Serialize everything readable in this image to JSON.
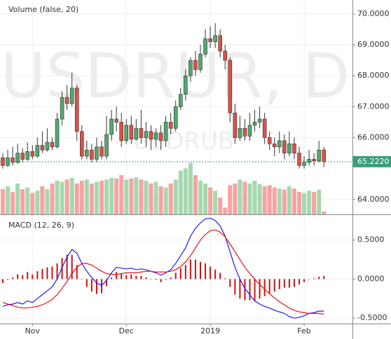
{
  "chart_data": [
    {
      "type": "candlestick",
      "watermark": "USDRUR, D",
      "watermark_sub": "USDRUB",
      "categories": [
        null,
        null,
        null,
        null,
        null,
        null,
        "Nov",
        null,
        null,
        null,
        null,
        null,
        null,
        null,
        null,
        null,
        null,
        null,
        null,
        null,
        null,
        null,
        null,
        null,
        null,
        "Dec",
        null,
        null,
        null,
        null,
        null,
        null,
        null,
        null,
        null,
        null,
        null,
        null,
        null,
        null,
        null,
        null,
        "2019",
        null,
        null,
        null,
        null,
        null,
        null,
        null,
        null,
        null,
        null,
        null,
        null,
        null,
        null,
        null,
        null,
        null,
        null,
        "Feb",
        null,
        null,
        null,
        null
      ],
      "open": [
        65.35,
        65.1,
        65.35,
        65.2,
        65.5,
        65.3,
        65.55,
        65.4,
        65.75,
        65.6,
        65.85,
        65.7,
        66.6,
        67.3,
        67.1,
        67.6,
        66.2,
        65.4,
        65.6,
        65.3,
        65.7,
        65.4,
        66.1,
        66.6,
        66.5,
        65.9,
        66.4,
        65.95,
        66.3,
        66.0,
        66.2,
        65.95,
        66.15,
        65.9,
        66.5,
        66.3,
        67.0,
        67.4,
        68.0,
        68.5,
        68.2,
        68.7,
        69.2,
        69.1,
        69.3,
        68.8,
        68.5,
        66.8,
        66.0,
        66.3,
        66.05,
        66.4,
        66.5,
        66.6,
        66.0,
        65.8,
        65.7,
        65.9,
        65.5,
        65.8,
        65.5,
        65.1,
        65.2,
        65.3,
        65.25,
        65.6
      ],
      "close": [
        65.1,
        65.35,
        65.2,
        65.5,
        65.3,
        65.55,
        65.4,
        65.75,
        65.6,
        65.85,
        65.7,
        66.6,
        67.3,
        67.1,
        67.6,
        66.2,
        65.4,
        65.6,
        65.3,
        65.7,
        65.4,
        66.1,
        66.6,
        66.5,
        65.9,
        66.4,
        65.95,
        66.3,
        66.0,
        66.2,
        65.95,
        66.15,
        65.9,
        66.5,
        66.3,
        67.0,
        67.4,
        68.0,
        68.5,
        68.2,
        68.7,
        69.2,
        69.1,
        69.3,
        68.8,
        68.5,
        66.8,
        66.0,
        66.3,
        66.05,
        66.4,
        66.5,
        66.6,
        66.0,
        65.8,
        65.7,
        65.9,
        65.5,
        65.8,
        65.5,
        65.1,
        65.2,
        65.3,
        65.25,
        65.6,
        65.222
      ],
      "high": [
        65.5,
        65.6,
        65.7,
        65.8,
        65.65,
        65.85,
        65.75,
        66.0,
        66.2,
        66.3,
        66.0,
        66.8,
        67.5,
        67.7,
        68.1,
        67.7,
        66.4,
        65.9,
        65.8,
        66.0,
        65.9,
        66.7,
        66.9,
        67.0,
        66.8,
        66.6,
        66.7,
        66.6,
        66.9,
        66.5,
        66.4,
        66.3,
        66.4,
        66.7,
        66.8,
        67.2,
        67.6,
        68.2,
        68.6,
        68.8,
        69.0,
        69.5,
        69.6,
        69.7,
        69.5,
        69.0,
        68.6,
        67.1,
        66.7,
        66.6,
        66.8,
        66.9,
        67.0,
        66.8,
        66.2,
        66.0,
        66.2,
        66.1,
        66.2,
        66.0,
        65.7,
        65.4,
        65.6,
        65.5,
        65.9,
        65.7
      ],
      "low": [
        65.0,
        65.05,
        65.1,
        65.15,
        65.2,
        65.25,
        65.3,
        65.35,
        65.5,
        65.55,
        65.6,
        65.65,
        66.4,
        66.9,
        67.0,
        65.9,
        65.3,
        65.3,
        65.2,
        65.2,
        65.3,
        65.3,
        65.9,
        66.2,
        65.7,
        65.8,
        65.8,
        65.9,
        65.8,
        65.7,
        65.6,
        65.7,
        65.6,
        65.7,
        66.1,
        66.2,
        66.9,
        67.2,
        67.8,
        68.0,
        68.1,
        68.6,
        68.9,
        68.9,
        68.6,
        68.2,
        66.5,
        65.8,
        65.9,
        65.9,
        65.9,
        66.2,
        66.3,
        65.8,
        65.6,
        65.4,
        65.5,
        65.3,
        65.4,
        65.3,
        65.0,
        65.0,
        65.1,
        65.1,
        65.2,
        65.05
      ],
      "up_color": "#53a86f",
      "down_color": "#d9534a",
      "ylim": [
        63.52,
        70.45
      ],
      "yticks": [
        {
          "value": 64,
          "label": "64.0000"
        },
        {
          "value": 66,
          "label": "66.0000"
        },
        {
          "value": 67,
          "label": "67.0000"
        },
        {
          "value": 68,
          "label": "68.0000"
        },
        {
          "value": 69,
          "label": "69.0000"
        },
        {
          "value": 70,
          "label": "70.0000"
        }
      ],
      "last_price": {
        "value": 65.222,
        "label": "65.2220"
      },
      "last_price_color": "#3c9d7a",
      "grid": true,
      "volume": {
        "title": "Volume (false, 20)",
        "values": [
          45,
          50,
          40,
          55,
          45,
          48,
          38,
          42,
          50,
          45,
          55,
          60,
          58,
          62,
          65,
          55,
          60,
          62,
          55,
          58,
          60,
          62,
          65,
          64,
          70,
          62,
          64,
          66,
          62,
          60,
          55,
          58,
          50,
          48,
          55,
          62,
          78,
          82,
          92,
          70,
          60,
          55,
          48,
          42,
          30,
          12,
          52,
          55,
          62,
          58,
          55,
          60,
          54,
          50,
          52,
          48,
          46,
          44,
          50,
          46,
          40,
          38,
          42,
          40,
          44,
          5
        ],
        "ylim": [
          0,
          100
        ],
        "up_color": "#a6d8ae",
        "down_color": "#f6a3a3"
      }
    },
    {
      "type": "line",
      "title": "MACD (12, 26, 9)",
      "series": [
        {
          "color": "#1a1aff",
          "values": [
            -0.35,
            -0.33,
            -0.32,
            -0.3,
            -0.32,
            -0.28,
            -0.3,
            -0.25,
            -0.2,
            -0.15,
            -0.1,
            0.0,
            0.15,
            0.28,
            0.38,
            0.33,
            0.2,
            0.1,
            0.02,
            -0.05,
            -0.08,
            -0.02,
            0.08,
            0.15,
            0.14,
            0.13,
            0.14,
            0.12,
            0.13,
            0.12,
            0.1,
            0.08,
            0.05,
            0.08,
            0.12,
            0.2,
            0.3,
            0.4,
            0.55,
            0.65,
            0.72,
            0.77,
            0.78,
            0.75,
            0.68,
            0.55,
            0.35,
            0.15,
            0.0,
            -0.12,
            -0.2,
            -0.28,
            -0.32,
            -0.35,
            -0.37,
            -0.4,
            -0.42,
            -0.44,
            -0.48,
            -0.5,
            -0.49,
            -0.47,
            -0.44,
            -0.43,
            -0.41,
            -0.41
          ]
        },
        {
          "color": "#ee1111",
          "values": [
            -0.3,
            -0.32,
            -0.34,
            -0.36,
            -0.37,
            -0.37,
            -0.36,
            -0.35,
            -0.33,
            -0.3,
            -0.26,
            -0.2,
            -0.12,
            -0.03,
            0.07,
            0.15,
            0.2,
            0.2,
            0.18,
            0.14,
            0.1,
            0.07,
            0.06,
            0.06,
            0.07,
            0.08,
            0.08,
            0.08,
            0.09,
            0.1,
            0.1,
            0.09,
            0.09,
            0.09,
            0.1,
            0.12,
            0.16,
            0.22,
            0.3,
            0.4,
            0.5,
            0.57,
            0.62,
            0.63,
            0.6,
            0.54,
            0.45,
            0.35,
            0.25,
            0.15,
            0.07,
            0.0,
            -0.07,
            -0.13,
            -0.19,
            -0.24,
            -0.29,
            -0.33,
            -0.37,
            -0.4,
            -0.42,
            -0.43,
            -0.44,
            -0.44,
            -0.44,
            -0.45
          ]
        }
      ],
      "histogram": {
        "color": "#cc1111",
        "values": [
          -0.05,
          -0.01,
          0.02,
          0.06,
          0.05,
          0.09,
          0.06,
          0.1,
          0.13,
          0.15,
          0.16,
          0.2,
          0.27,
          0.31,
          0.31,
          0.18,
          0.0,
          -0.1,
          -0.16,
          -0.19,
          -0.18,
          -0.09,
          0.02,
          0.09,
          0.07,
          0.05,
          0.06,
          0.04,
          0.04,
          0.02,
          0.0,
          -0.01,
          -0.04,
          -0.01,
          0.02,
          0.08,
          0.14,
          0.18,
          0.25,
          0.25,
          0.22,
          0.2,
          0.16,
          0.12,
          0.08,
          0.01,
          -0.1,
          -0.2,
          -0.25,
          -0.27,
          -0.27,
          -0.28,
          -0.25,
          -0.22,
          -0.18,
          -0.16,
          -0.13,
          -0.11,
          -0.11,
          -0.1,
          -0.07,
          -0.04,
          0.0,
          0.01,
          0.03,
          0.04
        ]
      },
      "ylim": [
        -0.57,
        0.82
      ],
      "yticks": [
        {
          "value": -0.5,
          "label": "-0.5000"
        },
        {
          "value": 0,
          "label": "0.0000"
        },
        {
          "value": 0.5,
          "label": "0.5000"
        }
      ],
      "grid": true
    }
  ]
}
